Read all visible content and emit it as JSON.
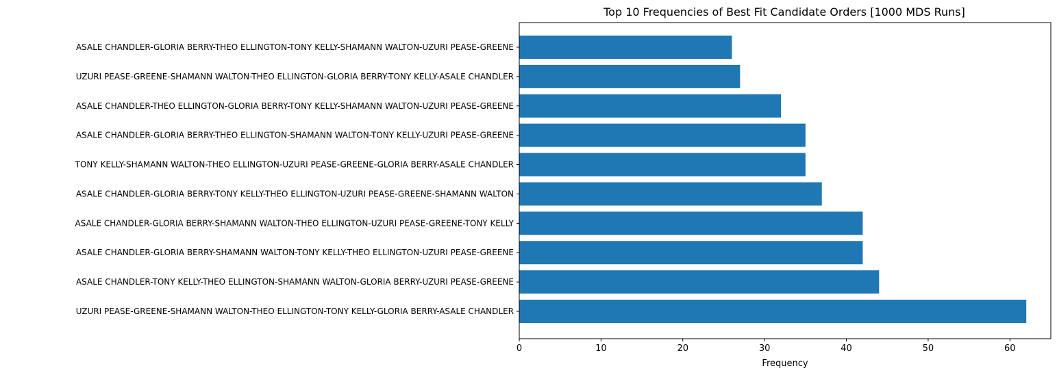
{
  "chart_data": {
    "type": "bar",
    "orientation": "horizontal",
    "title": "Top 10 Frequencies of Best Fit Candidate Orders [1000 MDS Runs]",
    "xlabel": "Frequency",
    "ylabel": "",
    "xlim": [
      0,
      65
    ],
    "xticks": [
      0,
      10,
      20,
      30,
      40,
      50,
      60
    ],
    "grid": false,
    "bar_color": "#1f77b4",
    "categories": [
      "UZURI PEASE-GREENE-SHAMANN WALTON-THEO ELLINGTON-TONY KELLY-GLORIA BERRY-ASALE CHANDLER",
      "ASALE CHANDLER-TONY KELLY-THEO ELLINGTON-SHAMANN WALTON-GLORIA BERRY-UZURI PEASE-GREENE",
      "ASALE CHANDLER-GLORIA BERRY-SHAMANN WALTON-TONY KELLY-THEO ELLINGTON-UZURI PEASE-GREENE",
      "ASALE CHANDLER-GLORIA BERRY-SHAMANN WALTON-THEO ELLINGTON-UZURI PEASE-GREENE-TONY KELLY",
      "ASALE CHANDLER-GLORIA BERRY-TONY KELLY-THEO ELLINGTON-UZURI PEASE-GREENE-SHAMANN WALTON",
      "TONY KELLY-SHAMANN WALTON-THEO ELLINGTON-UZURI PEASE-GREENE-GLORIA BERRY-ASALE CHANDLER",
      "ASALE CHANDLER-GLORIA BERRY-THEO ELLINGTON-SHAMANN WALTON-TONY KELLY-UZURI PEASE-GREENE",
      "ASALE CHANDLER-THEO ELLINGTON-GLORIA BERRY-TONY KELLY-SHAMANN WALTON-UZURI PEASE-GREENE",
      "UZURI PEASE-GREENE-SHAMANN WALTON-THEO ELLINGTON-GLORIA BERRY-TONY KELLY-ASALE CHANDLER",
      "ASALE CHANDLER-GLORIA BERRY-THEO ELLINGTON-TONY KELLY-SHAMANN WALTON-UZURI PEASE-GREENE"
    ],
    "values": [
      62,
      44,
      42,
      42,
      37,
      35,
      35,
      32,
      27,
      26
    ]
  }
}
